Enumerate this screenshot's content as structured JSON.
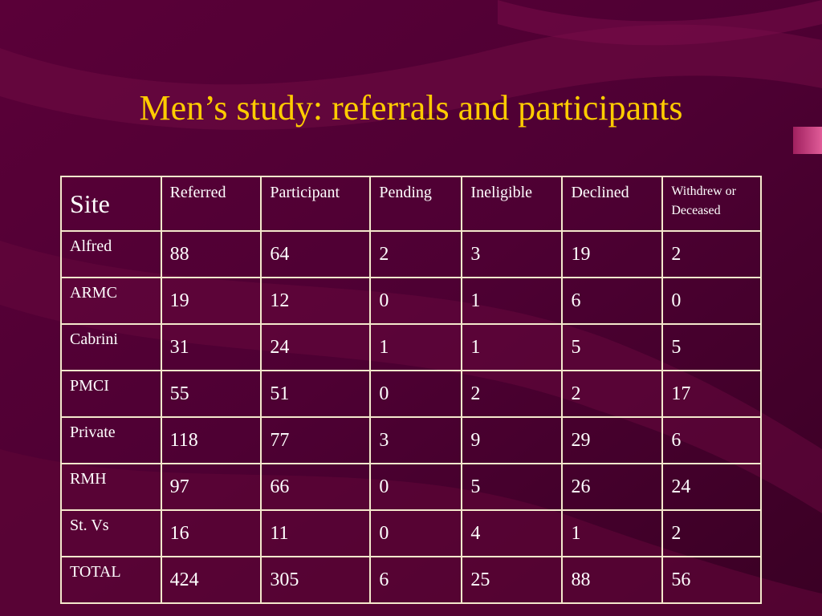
{
  "slide": {
    "title": "Men’s study: referrals and participants",
    "background_color": "#4a0030",
    "title_color": "#ffcc00"
  },
  "table": {
    "headers": {
      "site": "Site",
      "referred": "Referred",
      "participant": "Participant",
      "pending": "Pending",
      "ineligible": "Ineligible",
      "declined": "Declined",
      "withdrew_line1": "Withdrew or",
      "withdrew_line2": "Deceased"
    },
    "rows": [
      {
        "site": "Alfred",
        "referred": "88",
        "participant": "64",
        "pending": "2",
        "ineligible": "3",
        "declined": "19",
        "withdrew": "2"
      },
      {
        "site": "ARMC",
        "referred": "19",
        "participant": "12",
        "pending": "0",
        "ineligible": "1",
        "declined": "6",
        "withdrew": "0"
      },
      {
        "site": "Cabrini",
        "referred": "31",
        "participant": "24",
        "pending": "1",
        "ineligible": "1",
        "declined": "5",
        "withdrew": "5"
      },
      {
        "site": "PMCI",
        "referred": "55",
        "participant": "51",
        "pending": "0",
        "ineligible": "2",
        "declined": "2",
        "withdrew": "17"
      },
      {
        "site": "Private",
        "referred": "118",
        "participant": "77",
        "pending": "3",
        "ineligible": "9",
        "declined": "29",
        "withdrew": "6"
      },
      {
        "site": "RMH",
        "referred": "97",
        "participant": "66",
        "pending": "0",
        "ineligible": "5",
        "declined": "26",
        "withdrew": "24"
      },
      {
        "site": "St. Vs",
        "referred": "16",
        "participant": "11",
        "pending": "0",
        "ineligible": "4",
        "declined": "1",
        "withdrew": "2"
      },
      {
        "site": "TOTAL",
        "referred": "424",
        "participant": "305",
        "pending": "6",
        "ineligible": "25",
        "declined": "88",
        "withdrew": "56"
      }
    ]
  }
}
